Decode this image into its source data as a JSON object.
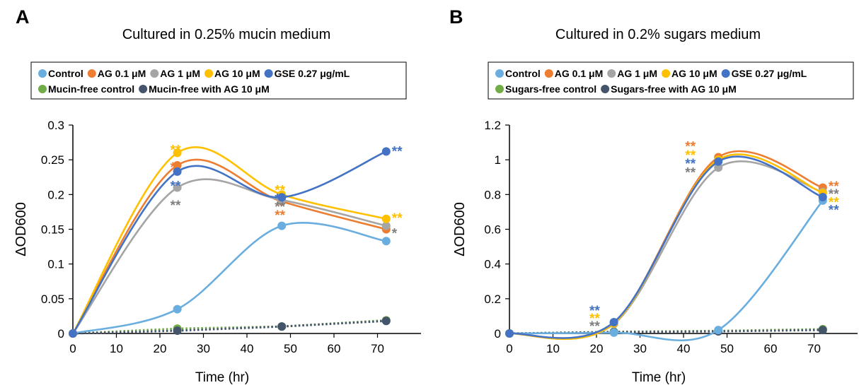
{
  "chart_data": [
    {
      "type": "line",
      "panel_label": "A",
      "title": "Cultured in 0.25% mucin medium",
      "xlabel": "Time (hr)",
      "ylabel": "ΔOD600",
      "x": [
        0,
        24,
        48,
        72
      ],
      "xlim": [
        0,
        80
      ],
      "ylim": [
        0,
        0.3
      ],
      "xticks": [
        "0",
        "10",
        "20",
        "30",
        "40",
        "50",
        "60",
        "70"
      ],
      "yticks": [
        "0",
        "0.05",
        "0.1",
        "0.15",
        "0.2",
        "0.25",
        "0.3"
      ],
      "grid": false,
      "legend_position": "top",
      "series": [
        {
          "name": "Control",
          "values": [
            0,
            0.035,
            0.155,
            0.133
          ],
          "color": "#6aaedf",
          "dashed": false
        },
        {
          "name": "AG 0.1 μM",
          "values": [
            0,
            0.242,
            0.19,
            0.15
          ],
          "color": "#ed7d31",
          "dashed": false
        },
        {
          "name": "AG 1 μM",
          "values": [
            0,
            0.21,
            0.192,
            0.155
          ],
          "color": "#a5a5a5",
          "dashed": false
        },
        {
          "name": "AG 10 μM",
          "values": [
            0,
            0.26,
            0.2,
            0.165
          ],
          "color": "#ffc000",
          "dashed": false
        },
        {
          "name": "GSE 0.27 μg/mL",
          "values": [
            0,
            0.233,
            0.196,
            0.262
          ],
          "color": "#4472c4",
          "dashed": false
        },
        {
          "name": "Mucin-free control",
          "values": [
            0,
            0.007,
            0.01,
            0.019
          ],
          "color": "#70ad47",
          "dashed": true
        },
        {
          "name": "Mucin-free with AG 10 μM",
          "values": [
            0,
            0.004,
            0.01,
            0.018
          ],
          "color": "#44546a",
          "dashed": true
        }
      ],
      "annotations": [
        {
          "x": 24,
          "y": 0.27,
          "text": "**",
          "color": "#ffc000"
        },
        {
          "x": 24,
          "y": 0.245,
          "text": "**",
          "color": "#ed7d31"
        },
        {
          "x": 24,
          "y": 0.218,
          "text": "**",
          "color": "#4472c4"
        },
        {
          "x": 24,
          "y": 0.19,
          "text": "**",
          "color": "#7f7f7f"
        },
        {
          "x": 48,
          "y": 0.212,
          "text": "**",
          "color": "#ffc000"
        },
        {
          "x": 48,
          "y": 0.2,
          "text": "**",
          "color": "#4472c4"
        },
        {
          "x": 48,
          "y": 0.188,
          "text": "**",
          "color": "#7f7f7f"
        },
        {
          "x": 48,
          "y": 0.176,
          "text": "**",
          "color": "#ed7d31"
        },
        {
          "x": 72,
          "y": 0.268,
          "text": "**",
          "color": "#4472c4"
        },
        {
          "x": 72,
          "y": 0.172,
          "text": "**",
          "color": "#ffc000"
        },
        {
          "x": 72,
          "y": 0.15,
          "text": "*",
          "color": "#7f7f7f"
        }
      ]
    },
    {
      "type": "line",
      "panel_label": "B",
      "title": "Cultured in 0.2% sugars medium",
      "xlabel": "Time (hr)",
      "ylabel": "ΔOD600",
      "x": [
        0,
        24,
        48,
        72
      ],
      "xlim": [
        0,
        80
      ],
      "ylim": [
        0,
        1.2
      ],
      "xticks": [
        "0",
        "10",
        "20",
        "30",
        "40",
        "50",
        "60",
        "70"
      ],
      "yticks": [
        "0",
        "0.2",
        "0.4",
        "0.6",
        "0.8",
        "1",
        "1.2"
      ],
      "grid": false,
      "legend_position": "top",
      "series": [
        {
          "name": "Control",
          "values": [
            0,
            0.005,
            0.02,
            0.765
          ],
          "color": "#6aaedf",
          "dashed": false
        },
        {
          "name": "AG 0.1 μM",
          "values": [
            0,
            0.06,
            1.015,
            0.84
          ],
          "color": "#ed7d31",
          "dashed": false
        },
        {
          "name": "AG 1 μM",
          "values": [
            0,
            0.055,
            0.955,
            0.815
          ],
          "color": "#a5a5a5",
          "dashed": false
        },
        {
          "name": "AG 10 μM",
          "values": [
            0,
            0.058,
            1.0,
            0.81
          ],
          "color": "#ffc000",
          "dashed": false
        },
        {
          "name": "GSE 0.27 μg/mL",
          "values": [
            0,
            0.065,
            0.99,
            0.785
          ],
          "color": "#4472c4",
          "dashed": false
        },
        {
          "name": "Sugars-free control",
          "values": [
            0,
            0.01,
            0.015,
            0.025
          ],
          "color": "#70ad47",
          "dashed": true
        },
        {
          "name": "Sugars-free with AG 10 μM",
          "values": [
            0,
            0.008,
            0.012,
            0.02
          ],
          "color": "#44546a",
          "dashed": true
        }
      ],
      "annotations": [
        {
          "x": 20,
          "y": 0.155,
          "text": "**",
          "color": "#4472c4"
        },
        {
          "x": 20,
          "y": 0.11,
          "text": "**",
          "color": "#ffc000"
        },
        {
          "x": 20,
          "y": 0.065,
          "text": "**",
          "color": "#7f7f7f"
        },
        {
          "x": 42,
          "y": 1.1,
          "text": "**",
          "color": "#ed7d31"
        },
        {
          "x": 42,
          "y": 1.05,
          "text": "**",
          "color": "#ffc000"
        },
        {
          "x": 42,
          "y": 1.0,
          "text": "**",
          "color": "#4472c4"
        },
        {
          "x": 42,
          "y": 0.95,
          "text": "**",
          "color": "#7f7f7f"
        },
        {
          "x": 72,
          "y": 0.87,
          "text": "**",
          "color": "#ed7d31"
        },
        {
          "x": 72,
          "y": 0.825,
          "text": "**",
          "color": "#7f7f7f"
        },
        {
          "x": 72,
          "y": 0.78,
          "text": "**",
          "color": "#ffc000"
        },
        {
          "x": 72,
          "y": 0.735,
          "text": "**",
          "color": "#4472c4"
        }
      ]
    }
  ]
}
